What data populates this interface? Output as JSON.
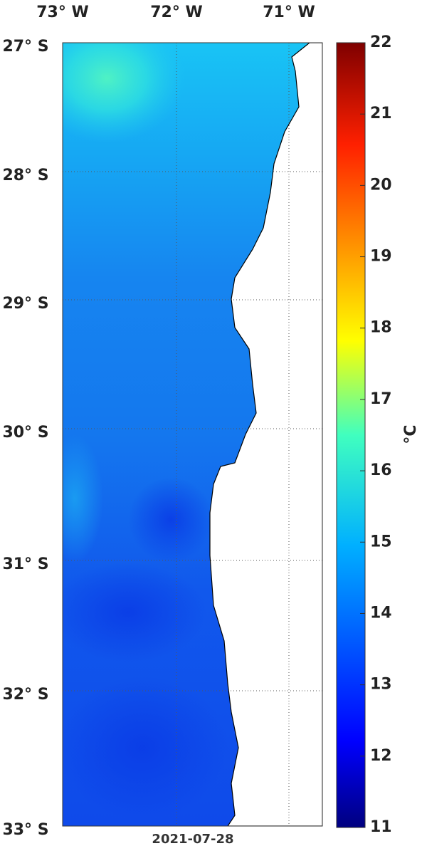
{
  "map": {
    "longitude_labels": [
      "73° W",
      "72° W",
      "71° W"
    ],
    "latitude_labels": [
      "27° S",
      "28° S",
      "29° S",
      "30° S",
      "31° S",
      "32° S",
      "33° S"
    ],
    "colorbar": {
      "range": [
        11,
        22
      ],
      "ticks": [
        11,
        12,
        13,
        14,
        15,
        16,
        17,
        18,
        19,
        20,
        21,
        22
      ],
      "unit": "°C"
    },
    "date": "2021-07-28"
  }
}
